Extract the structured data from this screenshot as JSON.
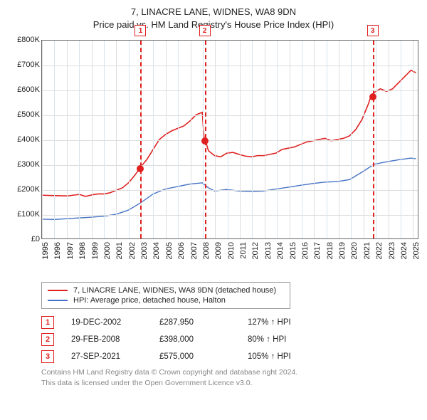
{
  "title_line1": "7, LINACRE LANE, WIDNES, WA8 9DN",
  "title_line2": "Price paid vs. HM Land Registry's House Price Index (HPI)",
  "chart": {
    "type": "line",
    "x_domain": [
      1995,
      2025.5
    ],
    "y_domain": [
      0,
      800000
    ],
    "y_ticks": [
      0,
      100000,
      200000,
      300000,
      400000,
      500000,
      600000,
      700000,
      800000
    ],
    "y_tick_labels": [
      "£0",
      "£100K",
      "£200K",
      "£300K",
      "£400K",
      "£500K",
      "£600K",
      "£700K",
      "£800K"
    ],
    "x_ticks": [
      1995,
      1996,
      1997,
      1998,
      1999,
      2000,
      2001,
      2002,
      2003,
      2004,
      2005,
      2006,
      2007,
      2008,
      2009,
      2010,
      2011,
      2012,
      2013,
      2014,
      2015,
      2016,
      2017,
      2018,
      2019,
      2020,
      2021,
      2022,
      2023,
      2024,
      2025
    ],
    "grid_color": "#dddddd",
    "alt_grid_color": "#d6e4f0",
    "background_color": "#ffffff",
    "series": [
      {
        "id": "price_paid",
        "label": "7, LINACRE LANE, WIDNES, WA8 9DN (detached house)",
        "color": "#e02020",
        "width": 1.6,
        "points": [
          [
            1995.0,
            175000
          ],
          [
            1996.0,
            173000
          ],
          [
            1997.0,
            172000
          ],
          [
            1998.0,
            178000
          ],
          [
            1998.5,
            170000
          ],
          [
            1999.0,
            176000
          ],
          [
            1999.5,
            180000
          ],
          [
            2000.0,
            180000
          ],
          [
            2000.5,
            185000
          ],
          [
            2001.0,
            195000
          ],
          [
            2001.5,
            205000
          ],
          [
            2002.0,
            225000
          ],
          [
            2002.5,
            255000
          ],
          [
            2002.97,
            287950
          ],
          [
            2003.5,
            320000
          ],
          [
            2004.0,
            360000
          ],
          [
            2004.5,
            400000
          ],
          [
            2005.0,
            420000
          ],
          [
            2005.5,
            435000
          ],
          [
            2006.0,
            445000
          ],
          [
            2006.5,
            455000
          ],
          [
            2007.0,
            475000
          ],
          [
            2007.5,
            500000
          ],
          [
            2008.0,
            510000
          ],
          [
            2008.16,
            398000
          ],
          [
            2008.3,
            390000
          ],
          [
            2008.5,
            355000
          ],
          [
            2009.0,
            335000
          ],
          [
            2009.5,
            330000
          ],
          [
            2010.0,
            345000
          ],
          [
            2010.5,
            348000
          ],
          [
            2011.0,
            340000
          ],
          [
            2011.5,
            333000
          ],
          [
            2012.0,
            330000
          ],
          [
            2012.5,
            335000
          ],
          [
            2013.0,
            335000
          ],
          [
            2013.5,
            340000
          ],
          [
            2014.0,
            345000
          ],
          [
            2014.5,
            360000
          ],
          [
            2015.0,
            365000
          ],
          [
            2015.5,
            370000
          ],
          [
            2016.0,
            380000
          ],
          [
            2016.5,
            390000
          ],
          [
            2017.0,
            395000
          ],
          [
            2017.5,
            400000
          ],
          [
            2018.0,
            405000
          ],
          [
            2018.5,
            395000
          ],
          [
            2019.0,
            400000
          ],
          [
            2019.5,
            405000
          ],
          [
            2020.0,
            415000
          ],
          [
            2020.5,
            440000
          ],
          [
            2021.0,
            480000
          ],
          [
            2021.5,
            540000
          ],
          [
            2021.74,
            575000
          ],
          [
            2022.0,
            590000
          ],
          [
            2022.5,
            605000
          ],
          [
            2023.0,
            595000
          ],
          [
            2023.5,
            605000
          ],
          [
            2024.0,
            630000
          ],
          [
            2024.5,
            655000
          ],
          [
            2025.0,
            680000
          ],
          [
            2025.4,
            670000
          ]
        ]
      },
      {
        "id": "hpi",
        "label": "HPI: Average price, detached house, Halton",
        "color": "#4472c4",
        "width": 1.4,
        "points": [
          [
            1995.0,
            78000
          ],
          [
            1996.0,
            77000
          ],
          [
            1997.0,
            80000
          ],
          [
            1998.0,
            83000
          ],
          [
            1999.0,
            86000
          ],
          [
            2000.0,
            90000
          ],
          [
            2001.0,
            98000
          ],
          [
            2002.0,
            115000
          ],
          [
            2003.0,
            145000
          ],
          [
            2004.0,
            180000
          ],
          [
            2005.0,
            200000
          ],
          [
            2006.0,
            210000
          ],
          [
            2007.0,
            220000
          ],
          [
            2008.0,
            225000
          ],
          [
            2008.5,
            205000
          ],
          [
            2009.0,
            192000
          ],
          [
            2010.0,
            198000
          ],
          [
            2011.0,
            192000
          ],
          [
            2012.0,
            190000
          ],
          [
            2013.0,
            192000
          ],
          [
            2014.0,
            200000
          ],
          [
            2015.0,
            207000
          ],
          [
            2016.0,
            215000
          ],
          [
            2017.0,
            222000
          ],
          [
            2018.0,
            228000
          ],
          [
            2019.0,
            230000
          ],
          [
            2020.0,
            238000
          ],
          [
            2021.0,
            268000
          ],
          [
            2022.0,
            300000
          ],
          [
            2023.0,
            310000
          ],
          [
            2024.0,
            318000
          ],
          [
            2025.0,
            325000
          ],
          [
            2025.4,
            322000
          ]
        ]
      }
    ],
    "sale_markers": [
      {
        "n": "1",
        "x": 2002.97,
        "y": 287950
      },
      {
        "n": "2",
        "x": 2008.16,
        "y": 398000
      },
      {
        "n": "3",
        "x": 2021.74,
        "y": 575000
      }
    ]
  },
  "legend": [
    {
      "color": "#e02020",
      "text": "7, LINACRE LANE, WIDNES, WA8 9DN (detached house)"
    },
    {
      "color": "#4472c4",
      "text": "HPI: Average price, detached house, Halton"
    }
  ],
  "annotation_rows": [
    {
      "n": "1",
      "date": "19-DEC-2002",
      "price": "£287,950",
      "delta": "127% ↑ HPI"
    },
    {
      "n": "2",
      "date": "29-FEB-2008",
      "price": "£398,000",
      "delta": "80% ↑ HPI"
    },
    {
      "n": "3",
      "date": "27-SEP-2021",
      "price": "£575,000",
      "delta": "105% ↑ HPI"
    }
  ],
  "footer_line1": "Contains HM Land Registry data © Crown copyright and database right 2024.",
  "footer_line2": "This data is licensed under the Open Government Licence v3.0."
}
